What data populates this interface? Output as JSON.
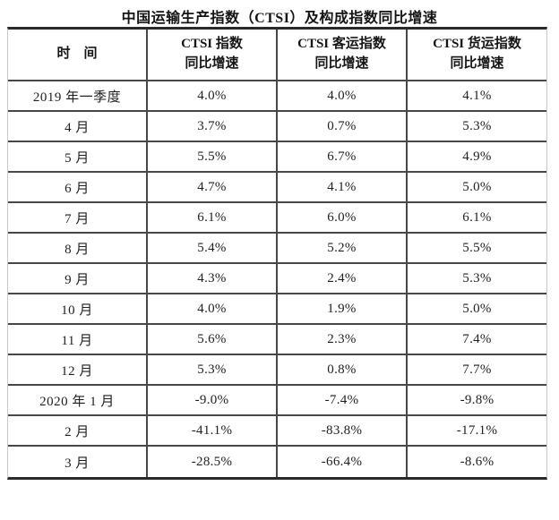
{
  "title": "中国运输生产指数（CTSI）及构成指数同比增速",
  "table": {
    "headers": {
      "time": "时　间",
      "ctsi": {
        "line1": "CTSI 指数",
        "line2": "同比增速"
      },
      "passenger": {
        "line1": "CTSI 客运指数",
        "line2": "同比增速"
      },
      "freight": {
        "line1": "CTSI 货运指数",
        "line2": "同比增速"
      }
    },
    "rows": [
      {
        "time": "2019 年一季度",
        "ctsi": "4.0%",
        "passenger": "4.0%",
        "freight": "4.1%"
      },
      {
        "time": "4 月",
        "ctsi": "3.7%",
        "passenger": "0.7%",
        "freight": "5.3%"
      },
      {
        "time": "5 月",
        "ctsi": "5.5%",
        "passenger": "6.7%",
        "freight": "4.9%"
      },
      {
        "time": "6 月",
        "ctsi": "4.7%",
        "passenger": "4.1%",
        "freight": "5.0%"
      },
      {
        "time": "7 月",
        "ctsi": "6.1%",
        "passenger": "6.0%",
        "freight": "6.1%"
      },
      {
        "time": "8 月",
        "ctsi": "5.4%",
        "passenger": "5.2%",
        "freight": "5.5%"
      },
      {
        "time": "9 月",
        "ctsi": "4.3%",
        "passenger": "2.4%",
        "freight": "5.3%"
      },
      {
        "time": "10 月",
        "ctsi": "4.0%",
        "passenger": "1.9%",
        "freight": "5.0%"
      },
      {
        "time": "11 月",
        "ctsi": "5.6%",
        "passenger": "2.3%",
        "freight": "7.4%"
      },
      {
        "time": "12 月",
        "ctsi": "5.3%",
        "passenger": "0.8%",
        "freight": "7.7%"
      },
      {
        "time": "2020 年 1 月",
        "ctsi": "-9.0%",
        "passenger": "-7.4%",
        "freight": "-9.8%"
      },
      {
        "time": "2 月",
        "ctsi": "-41.1%",
        "passenger": "-83.8%",
        "freight": "-17.1%"
      },
      {
        "time": "3 月",
        "ctsi": "-28.5%",
        "passenger": "-66.4%",
        "freight": "-8.6%"
      }
    ]
  },
  "colors": {
    "border_dark": "#474747",
    "border_outer": "#2a2a2a",
    "border_light": "#c9c9c9",
    "text": "#1f1f1f",
    "background": "#ffffff"
  },
  "chart_data": {
    "type": "table",
    "title": "中国运输生产指数（CTSI）及构成指数同比增速",
    "columns": [
      "时 间",
      "CTSI 指数同比增速",
      "CTSI 客运指数同比增速",
      "CTSI 货运指数同比增速"
    ],
    "rows": [
      [
        "2019 年一季度",
        "4.0%",
        "4.0%",
        "4.1%"
      ],
      [
        "4 月",
        "3.7%",
        "0.7%",
        "5.3%"
      ],
      [
        "5 月",
        "5.5%",
        "6.7%",
        "4.9%"
      ],
      [
        "6 月",
        "4.7%",
        "4.1%",
        "5.0%"
      ],
      [
        "7 月",
        "6.1%",
        "6.0%",
        "6.1%"
      ],
      [
        "8 月",
        "5.4%",
        "5.2%",
        "5.5%"
      ],
      [
        "9 月",
        "4.3%",
        "2.4%",
        "5.3%"
      ],
      [
        "10 月",
        "4.0%",
        "1.9%",
        "5.0%"
      ],
      [
        "11 月",
        "5.6%",
        "2.3%",
        "7.4%"
      ],
      [
        "12 月",
        "5.3%",
        "0.8%",
        "7.7%"
      ],
      [
        "2020 年 1 月",
        "-9.0%",
        "-7.4%",
        "-9.8%"
      ],
      [
        "2 月",
        "-41.1%",
        "-83.8%",
        "-17.1%"
      ],
      [
        "3 月",
        "-28.5%",
        "-66.4%",
        "-8.6%"
      ]
    ],
    "units": "percent (year-over-year growth)"
  }
}
